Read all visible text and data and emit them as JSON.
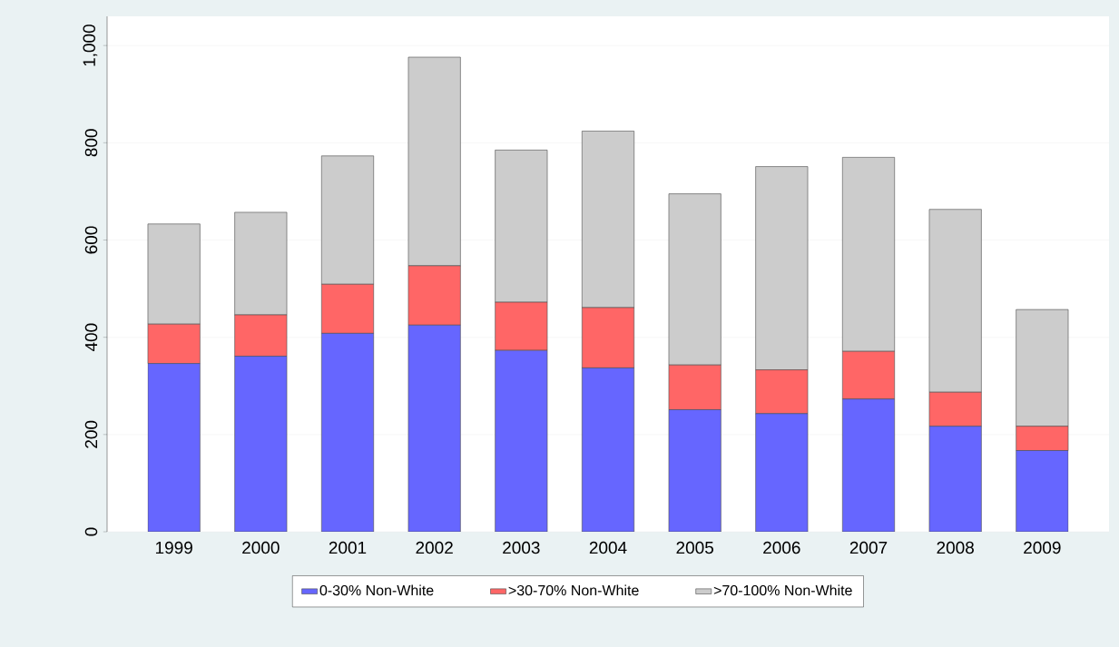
{
  "chart_data": {
    "type": "bar",
    "stacked": true,
    "categories": [
      "1999",
      "2000",
      "2001",
      "2002",
      "2003",
      "2004",
      "2005",
      "2006",
      "2007",
      "2008",
      "2009"
    ],
    "series": [
      {
        "name": "0-30% Non-White",
        "color": "#6666ff",
        "values": [
          346,
          361,
          408,
          425,
          373,
          337,
          251,
          243,
          273,
          217,
          167
        ]
      },
      {
        "name": ">30-70% Non-White",
        "color": "#ff6666",
        "values": [
          81,
          85,
          101,
          122,
          99,
          124,
          92,
          90,
          98,
          70,
          50
        ]
      },
      {
        "name": ">70-100% Non-White",
        "color": "#cccccc",
        "values": [
          206,
          211,
          264,
          429,
          313,
          363,
          352,
          418,
          399,
          376,
          240
        ]
      }
    ],
    "ylim": [
      0,
      1060
    ],
    "yticks": [
      0,
      200,
      400,
      600,
      800,
      {
        "value": 1000,
        "label": "1,000"
      }
    ],
    "grid": "y",
    "legend": "bottom"
  }
}
